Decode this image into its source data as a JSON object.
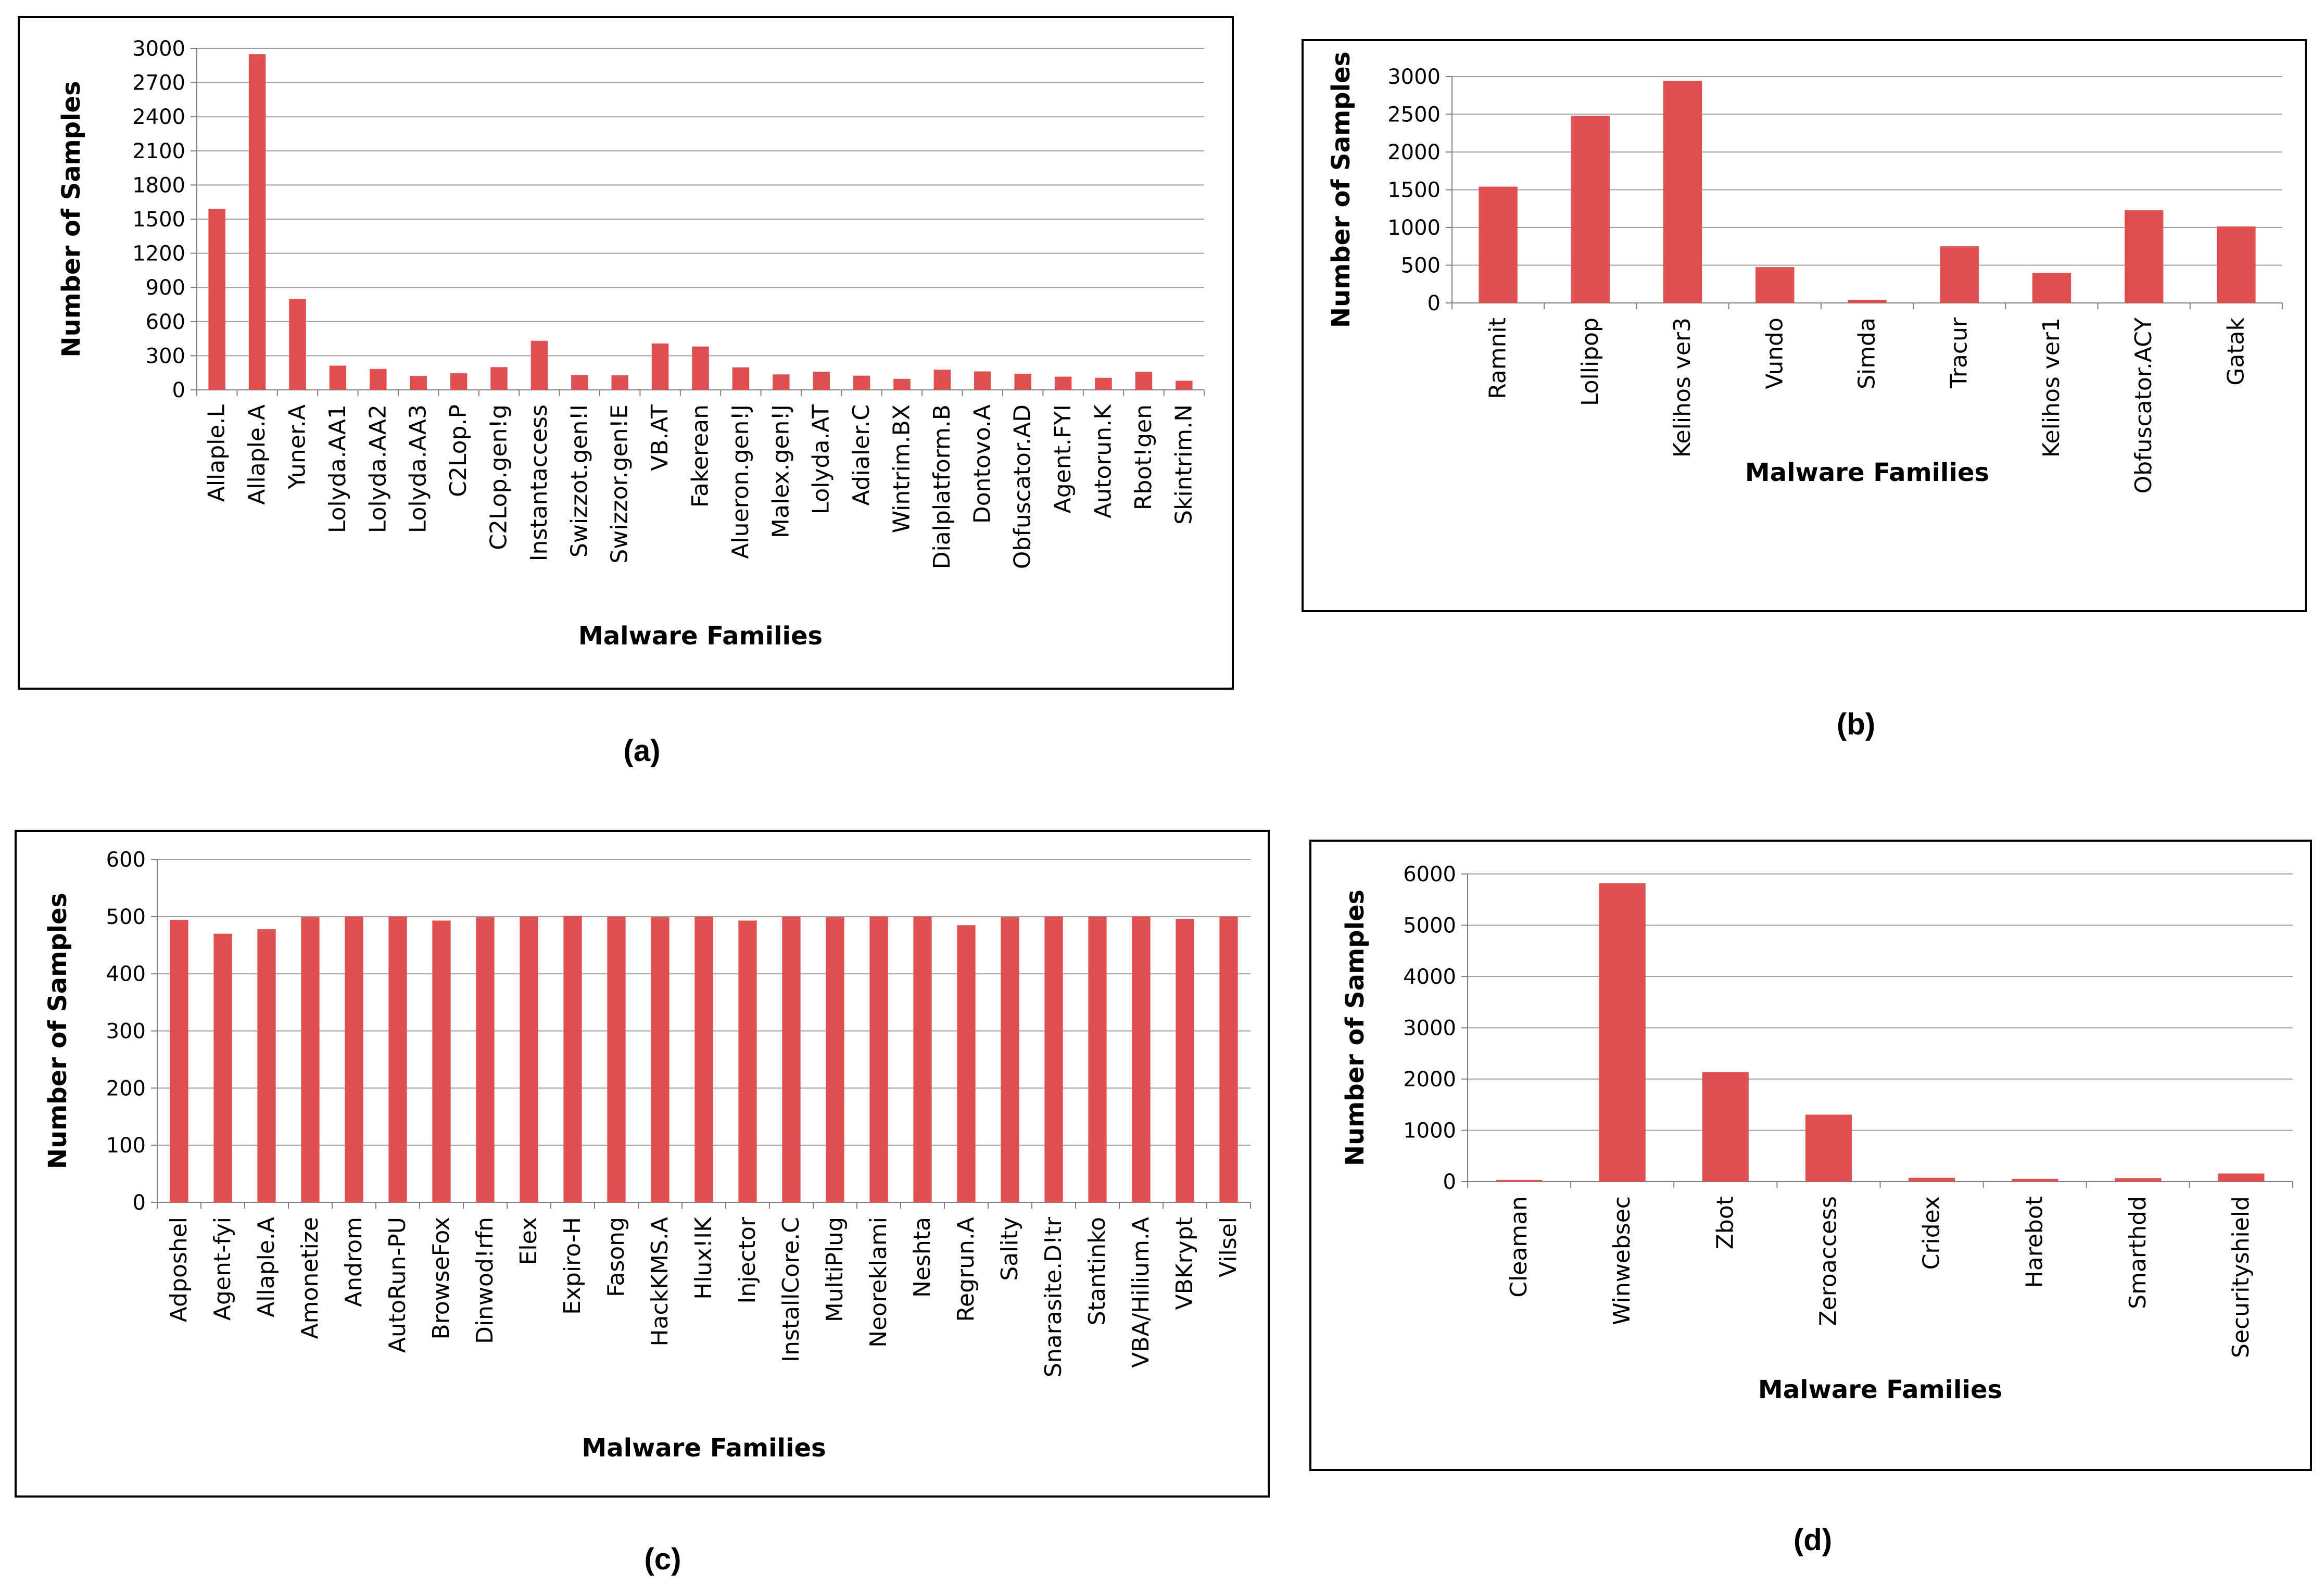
{
  "captions": [
    "(a)",
    "(b)",
    "(c)",
    "(d)"
  ],
  "chart_data": [
    {
      "type": "bar",
      "title": "",
      "xlabel": "Malware Families",
      "ylabel": "Number of Samples",
      "ylim": [
        0,
        3000
      ],
      "yticks": [
        0,
        300,
        600,
        900,
        1200,
        1500,
        1800,
        2100,
        2400,
        2700,
        3000
      ],
      "color": "#e05050",
      "categories": [
        "Allaple.L",
        "Allaple.A",
        "Yuner.A",
        "Lolyda.AA1",
        "Lolyda.AA2",
        "Lolyda.AA3",
        "C2Lop.P",
        "C2Lop.gen!g",
        "Instantaccess",
        "Swizzot.gen!I",
        "Swizzor.gen!E",
        "VB.AT",
        "Fakerean",
        "Alueron.gen!J",
        "Malex.gen!J",
        "Lolyda.AT",
        "Adialer.C",
        "Wintrim.BX",
        "Dialplatform.B",
        "Dontovo.A",
        "Obfuscator.AD",
        "Agent.FYI",
        "Autorun.K",
        "Rbot!gen",
        "Skintrim.N"
      ],
      "values": [
        1591,
        2949,
        800,
        213,
        184,
        123,
        146,
        200,
        431,
        132,
        128,
        408,
        381,
        198,
        136,
        159,
        125,
        97,
        177,
        162,
        142,
        116,
        106,
        158,
        80
      ]
    },
    {
      "type": "bar",
      "title": "",
      "xlabel": "Malware Families",
      "ylabel": "Number of Samples",
      "ylim": [
        0,
        3000
      ],
      "yticks": [
        0,
        500,
        1000,
        1500,
        2000,
        2500,
        3000
      ],
      "color": "#e05050",
      "categories": [
        "Ramnit",
        "Lollipop",
        "Kelihos ver3",
        "Vundo",
        "Simda",
        "Tracur",
        "Kelihos ver1",
        "Obfuscator.ACY",
        "Gatak"
      ],
      "values": [
        1541,
        2478,
        2942,
        475,
        42,
        751,
        398,
        1228,
        1013
      ]
    },
    {
      "type": "bar",
      "title": "",
      "xlabel": "Malware Families",
      "ylabel": "Number of Samples",
      "ylim": [
        0,
        600
      ],
      "yticks": [
        0,
        100,
        200,
        300,
        400,
        500,
        600
      ],
      "color": "#e05050",
      "categories": [
        "Adposhel",
        "Agent-fyi",
        "Allaple.A",
        "Amonetize",
        "Androm",
        "AutoRun-PU",
        "BrowseFox",
        "Dinwod!rfn",
        "Elex",
        "Expiro-H",
        "Fasong",
        "HackKMS.A",
        "Hlux!IK",
        "Injector",
        "InstallCore.C",
        "MultiPlug",
        "Neoreklami",
        "Neshta",
        "Regrun.A",
        "Sality",
        "Snarasite.D!tr",
        "Stantinko",
        "VBA/Hilium.A",
        "VBKrypt",
        "Vilsel"
      ],
      "values": [
        494,
        470,
        478,
        499,
        500,
        500,
        493,
        499,
        500,
        501,
        500,
        499,
        500,
        493,
        500,
        499,
        500,
        500,
        485,
        499,
        500,
        500,
        500,
        496,
        500
      ]
    },
    {
      "type": "bar",
      "title": "",
      "xlabel": "Malware Families",
      "ylabel": "Number of Samples",
      "ylim": [
        0,
        6000
      ],
      "yticks": [
        0,
        1000,
        2000,
        3000,
        4000,
        5000,
        6000
      ],
      "color": "#e05050",
      "categories": [
        "Cleaman",
        "Winwebsec",
        "Zbot",
        "Zeroaccess",
        "Cridex",
        "Harebot",
        "Smarthdd",
        "Securityshield"
      ],
      "values": [
        32,
        5820,
        2136,
        1306,
        74,
        53,
        68,
        158
      ]
    }
  ]
}
